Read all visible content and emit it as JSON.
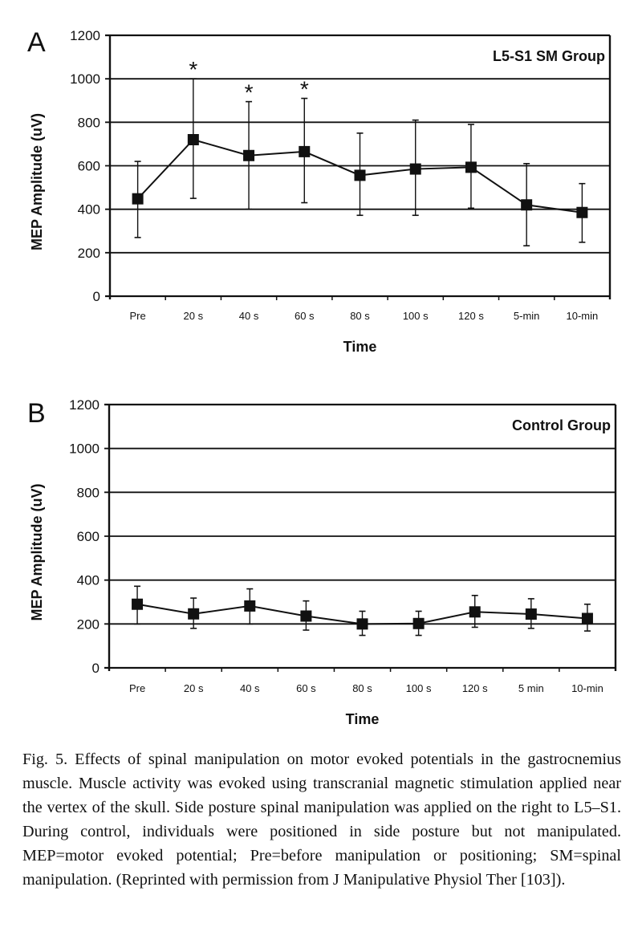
{
  "chart_data": [
    {
      "type": "line",
      "panel_letter": "A",
      "title": "L5-S1 SM Group",
      "xlabel": "Time",
      "ylabel": "MEP Amplitude (uV)",
      "ylim": [
        0,
        1200
      ],
      "yticks": [
        0,
        200,
        400,
        600,
        800,
        1000,
        1200
      ],
      "grid": true,
      "categories": [
        "Pre",
        "20 s",
        "40 s",
        "60 s",
        "80 s",
        "100 s",
        "120 s",
        "5-min",
        "10-min"
      ],
      "series": [
        {
          "name": "L5-S1 SM Group",
          "marker": "square",
          "values": [
            448,
            720,
            647,
            665,
            556,
            585,
            593,
            420,
            385
          ],
          "error_upper": [
            620,
            1000,
            895,
            910,
            750,
            810,
            790,
            610,
            518
          ],
          "error_lower": [
            270,
            450,
            400,
            430,
            372,
            372,
            405,
            232,
            248
          ]
        }
      ],
      "annotations": [
        {
          "category": "20 s",
          "text": "*"
        },
        {
          "category": "40 s",
          "text": "*"
        },
        {
          "category": "60 s",
          "text": "*"
        }
      ]
    },
    {
      "type": "line",
      "panel_letter": "B",
      "title": "Control Group",
      "xlabel": "Time",
      "ylabel": "MEP Amplitude (uV)",
      "ylim": [
        0,
        1200
      ],
      "yticks": [
        0,
        200,
        400,
        600,
        800,
        1000,
        1200
      ],
      "grid": true,
      "categories": [
        "Pre",
        "20 s",
        "40 s",
        "60 s",
        "80 s",
        "100 s",
        "120 s",
        "5 min",
        "10-min"
      ],
      "series": [
        {
          "name": "Control Group",
          "marker": "square",
          "values": [
            290,
            246,
            282,
            236,
            200,
            202,
            255,
            245,
            225
          ],
          "error_upper": [
            372,
            318,
            360,
            305,
            258,
            258,
            330,
            315,
            290
          ],
          "error_lower": [
            200,
            180,
            200,
            172,
            148,
            148,
            185,
            180,
            168
          ]
        }
      ],
      "annotations": []
    }
  ],
  "caption": "Fig. 5. Effects of spinal manipulation on motor evoked potentials in the gastrocnemius muscle. Muscle activity was evoked using transcranial magnetic stimulation applied near the vertex of the skull. Side posture spinal manipulation was applied on the right to L5–S1. During control, individuals were positioned in side posture but not manipulated. MEP=motor evoked potential; Pre=before manipulation or positioning; SM=spinal manipulation. (Reprinted with permission from J Manipulative Physiol Ther [103]).",
  "colors": {
    "ink": "#111111",
    "background": "#ffffff"
  }
}
